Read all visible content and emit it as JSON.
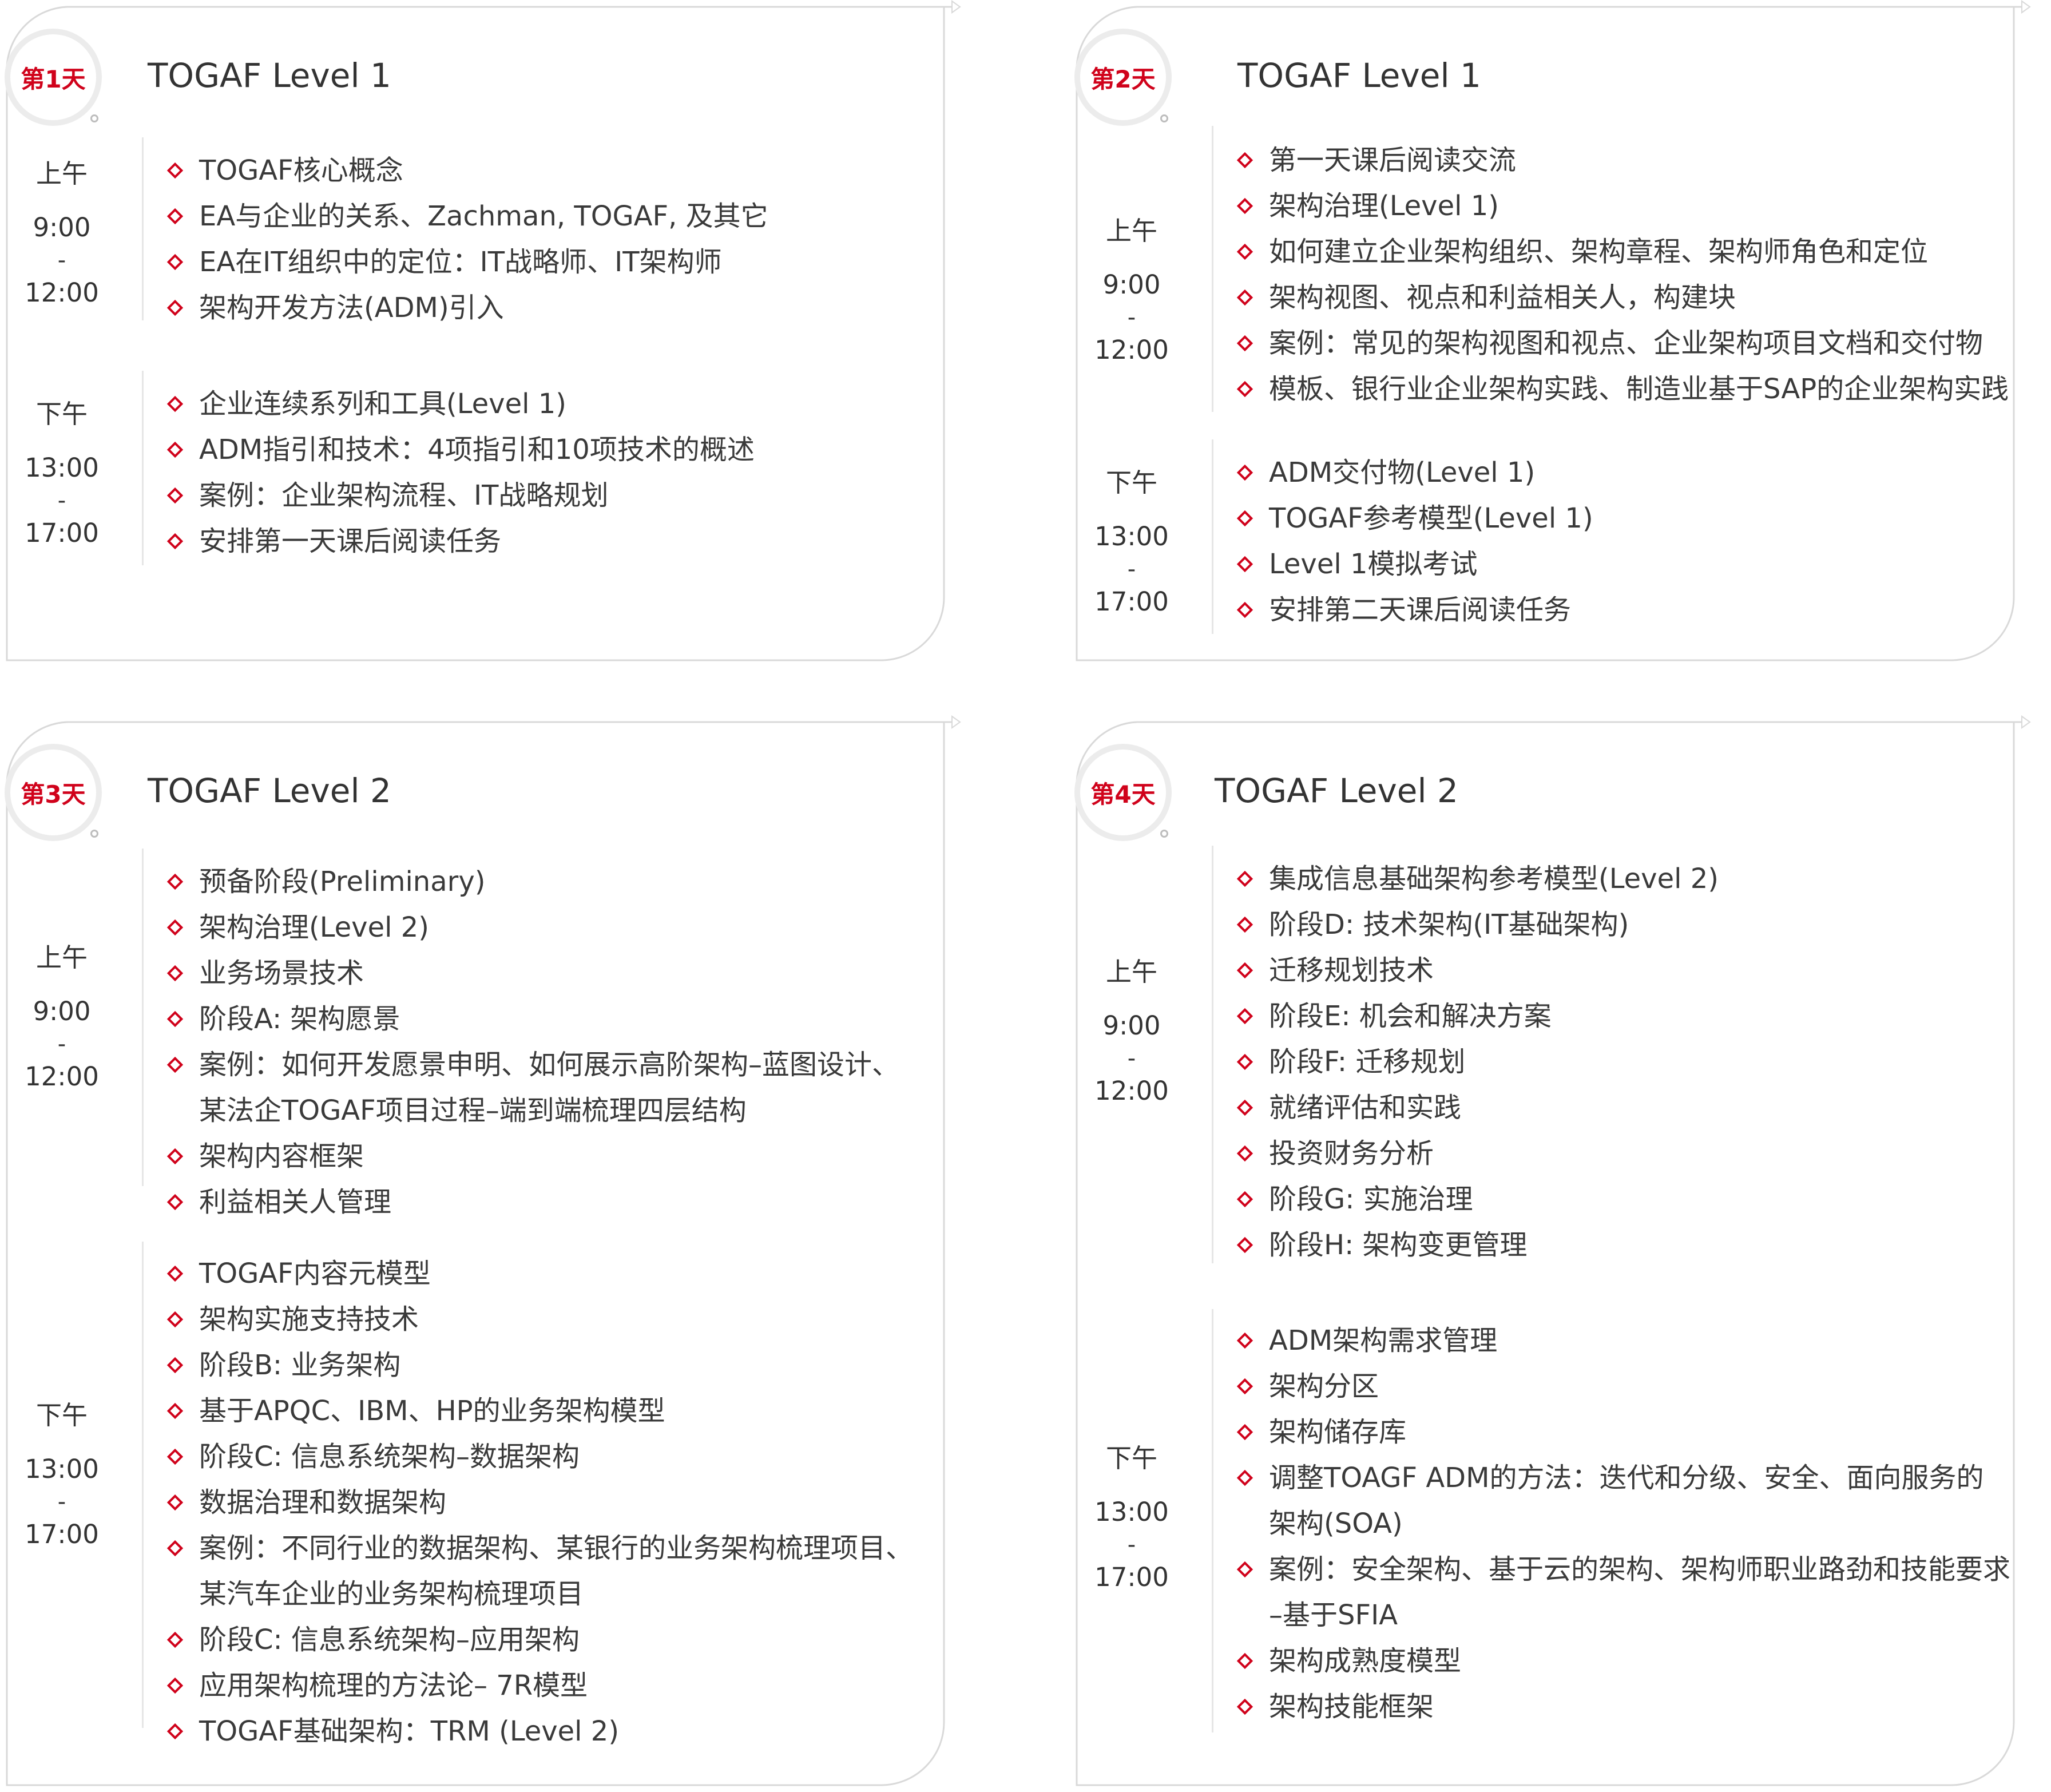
{
  "colors": {
    "accent": "#d0021b",
    "frame": "#d9d9d9",
    "divider": "#e6e6e6"
  },
  "icons": {
    "bullet": "diamond-outline-icon"
  },
  "cards": [
    {
      "badge": "第1天",
      "title": "TOGAF Level 1",
      "sessions": [
        {
          "period": "上午",
          "start": "9:00",
          "sep": "-",
          "end": "12:00",
          "items": [
            [
              "TOGAF核心概念"
            ],
            [
              "EA与企业的关系、Zachman, TOGAF, 及其它"
            ],
            [
              "EA在IT组织中的定位：IT战略师、IT架构师"
            ],
            [
              "架构开发方法(ADM)引入"
            ]
          ]
        },
        {
          "period": "下午",
          "start": "13:00",
          "sep": "-",
          "end": "17:00",
          "items": [
            [
              "企业连续系列和工具(Level 1)"
            ],
            [
              "ADM指引和技术：4项指引和10项技术的概述"
            ],
            [
              "案例：企业架构流程、IT战略规划"
            ],
            [
              "安排第一天课后阅读任务"
            ]
          ]
        }
      ]
    },
    {
      "badge": "第2天",
      "title": "TOGAF Level 1",
      "sessions": [
        {
          "period": "上午",
          "start": "9:00",
          "sep": "-",
          "end": "12:00",
          "items": [
            [
              "第一天课后阅读交流"
            ],
            [
              "架构治理(Level 1)"
            ],
            [
              "如何建立企业架构组织、架构章程、架构师角色和定位"
            ],
            [
              "架构视图、视点和利益相关人，构建块"
            ],
            [
              "案例：常见的架构视图和视点、企业架构项目文档和交付物"
            ],
            [
              "模板、银行业企业架构实践、制造业基于SAP的企业架构实践"
            ]
          ]
        },
        {
          "period": "下午",
          "start": "13:00",
          "sep": "-",
          "end": "17:00",
          "items": [
            [
              "ADM交付物(Level 1)"
            ],
            [
              "TOGAF参考模型(Level 1)"
            ],
            [
              "Level 1模拟考试"
            ],
            [
              "安排第二天课后阅读任务"
            ]
          ]
        }
      ]
    },
    {
      "badge": "第3天",
      "title": "TOGAF Level 2",
      "sessions": [
        {
          "period": "上午",
          "start": "9:00",
          "sep": "-",
          "end": "12:00",
          "items": [
            [
              "预备阶段(Preliminary)"
            ],
            [
              "架构治理(Level 2)"
            ],
            [
              "业务场景技术"
            ],
            [
              "阶段A: 架构愿景"
            ],
            [
              "案例：如何开发愿景申明、如何展示高阶架构–蓝图设计、",
              "某法企TOGAF项目过程–端到端梳理四层结构"
            ],
            [
              "架构内容框架"
            ],
            [
              "利益相关人管理"
            ]
          ]
        },
        {
          "period": "下午",
          "start": "13:00",
          "sep": "-",
          "end": "17:00",
          "items": [
            [
              "TOGAF内容元模型"
            ],
            [
              "架构实施支持技术"
            ],
            [
              "阶段B: 业务架构"
            ],
            [
              "基于APQC、IBM、HP的业务架构模型"
            ],
            [
              "阶段C: 信息系统架构–数据架构"
            ],
            [
              "数据治理和数据架构"
            ],
            [
              "案例：不同行业的数据架构、某银行的业务架构梳理项目、",
              "某汽车企业的业务架构梳理项目"
            ],
            [
              "阶段C: 信息系统架构–应用架构"
            ],
            [
              "应用架构梳理的方法论– 7R模型"
            ],
            [
              "TOGAF基础架构：TRM (Level 2)"
            ]
          ]
        }
      ]
    },
    {
      "badge": "第4天",
      "title": "TOGAF Level 2",
      "sessions": [
        {
          "period": "上午",
          "start": "9:00",
          "sep": "-",
          "end": "12:00",
          "items": [
            [
              "集成信息基础架构参考模型(Level 2)"
            ],
            [
              "阶段D: 技术架构(IT基础架构)"
            ],
            [
              "迁移规划技术"
            ],
            [
              "阶段E: 机会和解决方案"
            ],
            [
              "阶段F: 迁移规划"
            ],
            [
              "就绪评估和实践"
            ],
            [
              "投资财务分析"
            ],
            [
              "阶段G: 实施治理"
            ],
            [
              "阶段H: 架构变更管理"
            ]
          ]
        },
        {
          "period": "下午",
          "start": "13:00",
          "sep": "-",
          "end": "17:00",
          "items": [
            [
              "ADM架构需求管理"
            ],
            [
              "架构分区"
            ],
            [
              "架构储存库"
            ],
            [
              "调整TOAGF ADM的方法：迭代和分级、安全、面向服务的",
              "架构(SOA)"
            ],
            [
              "案例：安全架构、基于云的架构、架构师职业路劲和技能要求",
              "–基于SFIA"
            ],
            [
              "架构成熟度模型"
            ],
            [
              "架构技能框架"
            ]
          ]
        }
      ]
    }
  ]
}
